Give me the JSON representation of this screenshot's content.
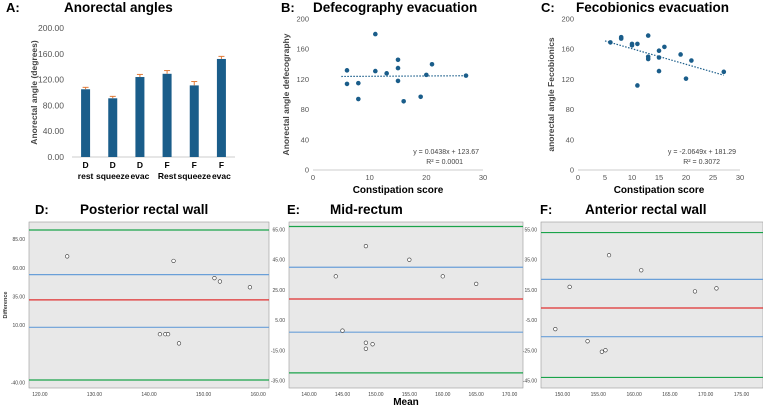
{
  "colors": {
    "bar": "#1a5d8a",
    "error": "#e07b39",
    "dot": "#1a5d8a",
    "ba_upper": "#1aa34a",
    "ba_lower": "#1aa34a",
    "ba_mean": "#e03030",
    "ba_ci": "#6a9fd8",
    "ba_bg": "#e8e8e8"
  },
  "chart_data": [
    {
      "id": "A",
      "type": "bar",
      "letter": "A:",
      "title": "Anorectal angles",
      "ylabel": "Anorectal angle (degrees)",
      "ylim": [
        0,
        200
      ],
      "yticks": [
        "0.00",
        "40.00",
        "80.00",
        "120.00",
        "160.00",
        "200.00"
      ],
      "categories_top": [
        "D",
        "D",
        "D",
        "F",
        "F",
        "F"
      ],
      "categories_bottom": [
        "rest",
        "squeeze",
        "evac",
        "Rest",
        "squeeze",
        "evac"
      ],
      "values": [
        105,
        91,
        124,
        129,
        111,
        152
      ],
      "errors": [
        3,
        3,
        4,
        5,
        6,
        4
      ]
    },
    {
      "id": "B",
      "type": "scatter",
      "letter": "B:",
      "title": "Defecography evacuation",
      "xlabel": "Constipation score",
      "ylabel": "Anorectal angle defecography",
      "xlim": [
        0,
        30
      ],
      "ylim": [
        0,
        200
      ],
      "xticks": [
        0,
        10,
        20,
        30
      ],
      "yticks": [
        0,
        40,
        80,
        120,
        160,
        200
      ],
      "x": [
        6,
        6,
        8,
        8,
        11,
        11,
        13,
        15,
        15,
        15,
        16,
        19,
        20,
        21,
        27
      ],
      "y": [
        132,
        114,
        115,
        94,
        180,
        131,
        128,
        146,
        135,
        118,
        91,
        97,
        126,
        140,
        125
      ],
      "trend": {
        "slope": 0.0438,
        "intercept": 123.67,
        "x0": 5,
        "x1": 27
      },
      "equation": "y = 0.0438x + 123.67",
      "r2": "R² = 0.0001"
    },
    {
      "id": "C",
      "type": "scatter",
      "letter": "C:",
      "title": "Fecobionics evacuation",
      "xlabel": "Constipation score",
      "ylabel": "anorectal angle Fecobionics",
      "xlim": [
        0,
        30
      ],
      "ylim": [
        0,
        200
      ],
      "xticks": [
        0,
        5,
        10,
        15,
        20,
        25,
        30
      ],
      "yticks": [
        0,
        40,
        80,
        120,
        160,
        200
      ],
      "x": [
        6,
        8,
        8,
        10,
        10,
        11,
        11,
        13,
        13,
        13,
        15,
        15,
        15,
        16,
        19,
        20,
        21,
        27
      ],
      "y": [
        169,
        176,
        174,
        167,
        165,
        112,
        167,
        178,
        150,
        147,
        158,
        149,
        131,
        163,
        153,
        121,
        145,
        130
      ],
      "trend": {
        "slope": -2.0649,
        "intercept": 181.29,
        "x0": 5,
        "x1": 27
      },
      "equation": "y = -2.0649x + 181.29",
      "r2": "R² = 0.3072"
    },
    {
      "id": "D",
      "type": "scatter",
      "letter": "D:",
      "title": "Posterior rectal wall",
      "ylabel": "Difference",
      "xlim": [
        118,
        162
      ],
      "ylim": [
        -45,
        100
      ],
      "xticks": [
        "120.00",
        "130.00",
        "140.00",
        "150.00",
        "160.00"
      ],
      "xtick_vals": [
        120,
        130,
        140,
        150,
        160
      ],
      "yticks": [
        "-40.00",
        "10.00",
        "35.00",
        "60.00",
        "85.00"
      ],
      "ytick_vals": [
        -40,
        10,
        35,
        60,
        85
      ],
      "upper": 93,
      "upper_ci": 54,
      "mean": 32,
      "lower_ci": 8,
      "lower": -38,
      "x": [
        125,
        144.5,
        152,
        153,
        158.5,
        142,
        143,
        143.5,
        145.5
      ],
      "y": [
        70,
        66,
        51,
        48,
        43,
        2,
        2,
        2,
        -6
      ]
    },
    {
      "id": "E",
      "type": "scatter",
      "letter": "E:",
      "title": "Mid-rectum",
      "xlabel": "Mean",
      "xlim": [
        137,
        172
      ],
      "ylim": [
        -40,
        70
      ],
      "xticks": [
        "140.00",
        "145.00",
        "150.00",
        "155.00",
        "160.00",
        "165.00",
        "170.00"
      ],
      "xtick_vals": [
        140,
        145,
        150,
        155,
        160,
        165,
        170
      ],
      "yticks": [
        "-35.00",
        "-15.00",
        "5.00",
        "25.00",
        "45.00",
        "65.00"
      ],
      "ytick_vals": [
        -35,
        -15,
        5,
        25,
        45,
        65
      ],
      "upper": 67,
      "upper_ci": 40,
      "mean": 19,
      "lower_ci": -3,
      "lower": -30,
      "x": [
        144,
        148.5,
        155,
        160,
        165,
        145,
        148.5,
        148.5,
        149.5
      ],
      "y": [
        34,
        54,
        45,
        34,
        29,
        -2,
        -10,
        -14,
        -11
      ]
    },
    {
      "id": "F",
      "type": "scatter",
      "letter": "F:",
      "title": "Anterior rectal wall",
      "xlim": [
        147,
        178
      ],
      "ylim": [
        -50,
        60
      ],
      "xticks": [
        "150.00",
        "155.00",
        "160.00",
        "165.00",
        "170.00",
        "175.00"
      ],
      "xtick_vals": [
        150,
        155,
        160,
        165,
        170,
        175
      ],
      "yticks": [
        "-45.00",
        "-25.00",
        "-5.00",
        "15.00",
        "35.00",
        "55.00"
      ],
      "ytick_vals": [
        -45,
        -25,
        -5,
        15,
        35,
        55
      ],
      "upper": 53,
      "upper_ci": 22,
      "mean": 3,
      "lower_ci": -16,
      "lower": -43,
      "x": [
        149,
        151,
        153.5,
        155.5,
        156,
        156.5,
        161,
        168.5,
        171.5
      ],
      "y": [
        -11,
        17,
        -19,
        -26,
        -25,
        38,
        28,
        14,
        16
      ]
    }
  ]
}
